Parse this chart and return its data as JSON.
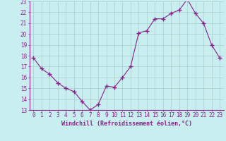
{
  "x": [
    0,
    1,
    2,
    3,
    4,
    5,
    6,
    7,
    8,
    9,
    10,
    11,
    12,
    13,
    14,
    15,
    16,
    17,
    18,
    19,
    20,
    21,
    22,
    23
  ],
  "y": [
    17.8,
    16.8,
    16.3,
    15.5,
    15.0,
    14.7,
    13.8,
    13.0,
    13.5,
    15.2,
    15.1,
    16.0,
    17.0,
    20.1,
    20.3,
    21.4,
    21.4,
    21.9,
    22.2,
    23.2,
    21.9,
    21.0,
    19.0,
    17.8
  ],
  "line_color": "#882288",
  "marker": "+",
  "marker_size": 4,
  "bg_color": "#c8eef0",
  "grid_color": "#aacccc",
  "tick_color": "#882288",
  "label_color": "#882288",
  "xlabel": "Windchill (Refroidissement éolien,°C)",
  "xlim_min": -0.5,
  "xlim_max": 23.5,
  "ylim_min": 13,
  "ylim_max": 23,
  "yticks": [
    13,
    14,
    15,
    16,
    17,
    18,
    19,
    20,
    21,
    22,
    23
  ],
  "xticks": [
    0,
    1,
    2,
    3,
    4,
    5,
    6,
    7,
    8,
    9,
    10,
    11,
    12,
    13,
    14,
    15,
    16,
    17,
    18,
    19,
    20,
    21,
    22,
    23
  ],
  "tick_fontsize": 5.5,
  "xlabel_fontsize": 6.0
}
